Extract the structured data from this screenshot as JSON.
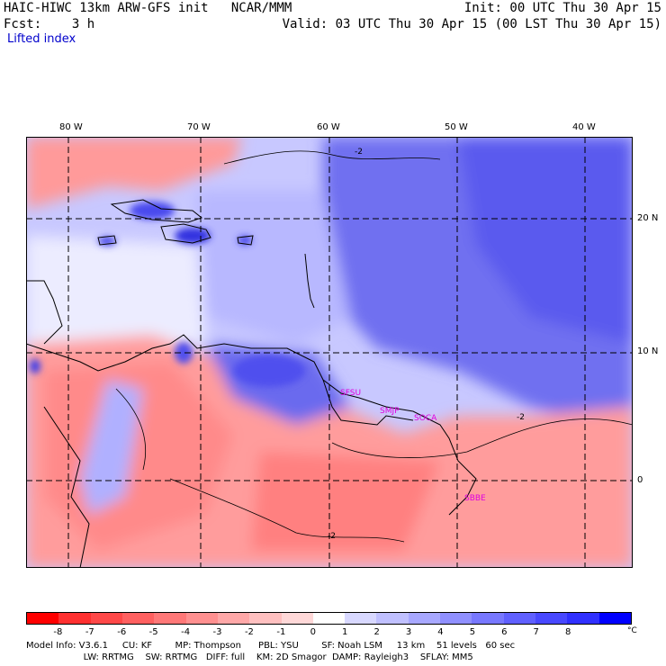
{
  "header": {
    "model_title": "HAIC-HIWC 13km ARW-GFS init   NCAR/MMM",
    "init_time": "Init: 00 UTC Thu 30 Apr 15",
    "forecast": "Fcst:    3 h",
    "valid_time": "Valid: 03 UTC Thu 30 Apr 15 (00 LST Thu 30 Apr 15)",
    "field_name": "Lifted index"
  },
  "map": {
    "longitude_labels": [
      "80 W",
      "70 W",
      "60 W",
      "50 W",
      "40 W"
    ],
    "latitude_labels": [
      "20 N",
      "10 N",
      "0"
    ],
    "contour_label": "-2",
    "stations": [
      "SFSU",
      "SMJP",
      "SOCA",
      "SBBE"
    ]
  },
  "colorbar": {
    "tick_labels": [
      "-8",
      "-7",
      "-6",
      "-5",
      "-4",
      "-3",
      "-2",
      "-1",
      "0",
      "1",
      "2",
      "3",
      "4",
      "5",
      "6",
      "7",
      "8"
    ],
    "unit": "°C",
    "colors": [
      "#ff0000",
      "#ff3030",
      "#ff4848",
      "#ff6060",
      "#ff7878",
      "#ff9090",
      "#ffa8a8",
      "#ffc0c0",
      "#ffd8d8",
      "#ffffff",
      "#d8d8ff",
      "#c0c0ff",
      "#a8a8ff",
      "#9090ff",
      "#7878ff",
      "#6060ff",
      "#4848ff",
      "#3030ff",
      "#0000ff"
    ]
  },
  "footer": {
    "line1": "Model Info: V3.6.1     CU: KF        MP: Thompson      PBL: YSU        SF: Noah LSM     13 km    51 levels   60 sec",
    "line2": "                    LW: RRTMG    SW: RRTMG   DIFF: full    KM: 2D Smagor  DAMP: Rayleigh3    SFLAY: MM5"
  }
}
